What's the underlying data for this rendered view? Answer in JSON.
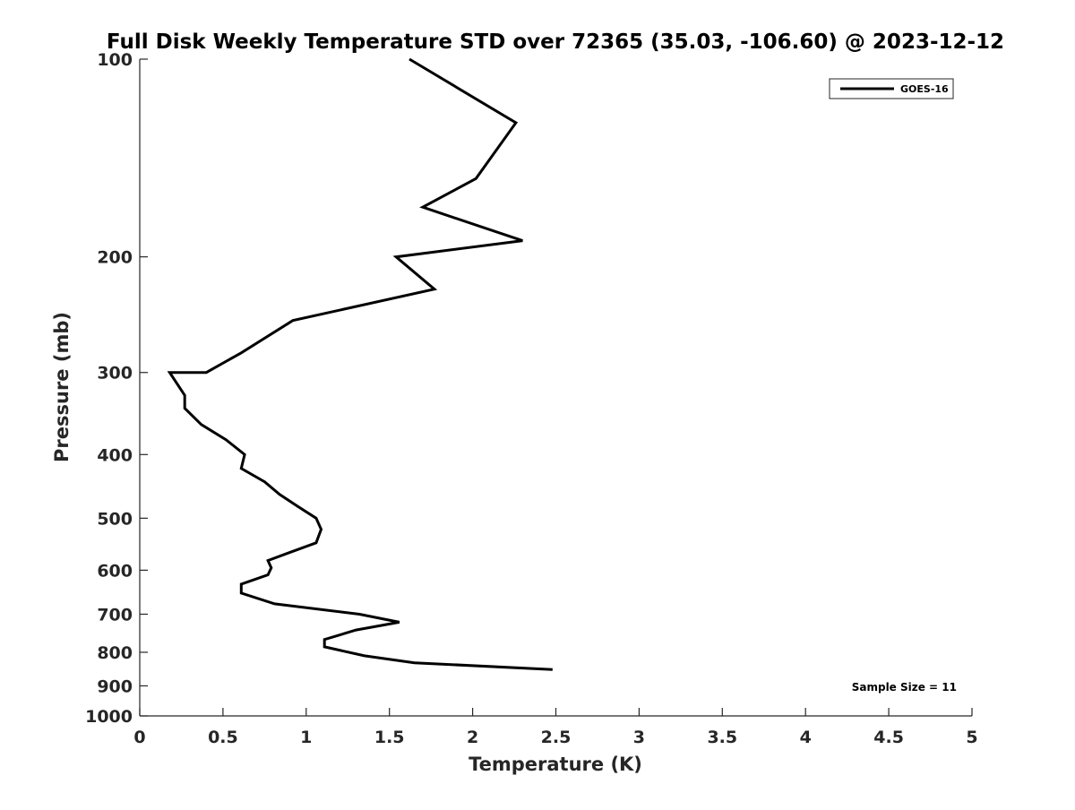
{
  "chart_data": {
    "type": "line",
    "title": "Full Disk Weekly Temperature STD over 72365 (35.03, -106.60) @ 2023-12-12",
    "xlabel": "Temperature (K)",
    "ylabel": "Pressure (mb)",
    "xlim": [
      0,
      5
    ],
    "ylim": [
      100,
      1000
    ],
    "y_scale": "log",
    "y_reversed": true,
    "x_ticks": [
      "0",
      "0.5",
      "1",
      "1.5",
      "2",
      "2.5",
      "3",
      "3.5",
      "4",
      "4.5",
      "5"
    ],
    "y_ticks": [
      "100",
      "200",
      "300",
      "400",
      "500",
      "600",
      "700",
      "800",
      "900",
      "1000"
    ],
    "grid": false,
    "legend_position": "top-right",
    "annotation": "Sample Size = 11",
    "series": [
      {
        "name": "GOES-16",
        "color": "#000000",
        "points": [
          [
            1.62,
            100
          ],
          [
            2.26,
            125
          ],
          [
            2.02,
            152
          ],
          [
            1.7,
            168
          ],
          [
            2.3,
            189
          ],
          [
            1.54,
            200
          ],
          [
            1.77,
            224
          ],
          [
            0.92,
            250
          ],
          [
            0.61,
            280
          ],
          [
            0.4,
            300
          ],
          [
            0.18,
            300
          ],
          [
            0.27,
            325
          ],
          [
            0.27,
            340
          ],
          [
            0.37,
            360
          ],
          [
            0.52,
            380
          ],
          [
            0.63,
            400
          ],
          [
            0.61,
            420
          ],
          [
            0.75,
            440
          ],
          [
            0.84,
            460
          ],
          [
            0.95,
            480
          ],
          [
            1.06,
            500
          ],
          [
            1.09,
            520
          ],
          [
            1.06,
            545
          ],
          [
            0.89,
            565
          ],
          [
            0.77,
            580
          ],
          [
            0.79,
            595
          ],
          [
            0.77,
            610
          ],
          [
            0.61,
            630
          ],
          [
            0.61,
            650
          ],
          [
            0.81,
            675
          ],
          [
            1.32,
            700
          ],
          [
            1.56,
            720
          ],
          [
            1.3,
            740
          ],
          [
            1.11,
            765
          ],
          [
            1.11,
            785
          ],
          [
            1.35,
            810
          ],
          [
            1.65,
            830
          ],
          [
            2.48,
            850
          ]
        ]
      }
    ]
  }
}
